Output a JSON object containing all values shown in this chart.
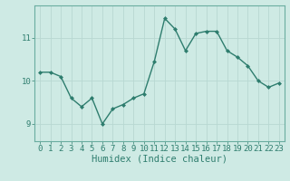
{
  "x": [
    0,
    1,
    2,
    3,
    4,
    5,
    6,
    7,
    8,
    9,
    10,
    11,
    12,
    13,
    14,
    15,
    16,
    17,
    18,
    19,
    20,
    21,
    22,
    23
  ],
  "y": [
    10.2,
    10.2,
    10.1,
    9.6,
    9.4,
    9.6,
    9.0,
    9.35,
    9.45,
    9.6,
    9.7,
    10.45,
    11.45,
    11.2,
    10.7,
    11.1,
    11.15,
    11.15,
    10.7,
    10.55,
    10.35,
    10.0,
    9.85,
    9.95
  ],
  "line_color": "#2e7d6e",
  "marker": "D",
  "marker_size": 2.0,
  "linewidth": 1.0,
  "bg_color": "#ceeae4",
  "grid_color_major": "#b8d8d2",
  "grid_color_minor": "#c8e4de",
  "xlabel": "Humidex (Indice chaleur)",
  "xlabel_fontsize": 7.5,
  "yticks": [
    9,
    10,
    11
  ],
  "xtick_labels": [
    "0",
    "1",
    "2",
    "3",
    "4",
    "5",
    "6",
    "7",
    "8",
    "9",
    "10",
    "11",
    "12",
    "13",
    "14",
    "15",
    "16",
    "17",
    "18",
    "19",
    "20",
    "21",
    "22",
    "23"
  ],
  "ylim": [
    8.6,
    11.75
  ],
  "xlim": [
    -0.5,
    23.5
  ],
  "tick_fontsize": 6.5,
  "spine_color": "#6aada0"
}
